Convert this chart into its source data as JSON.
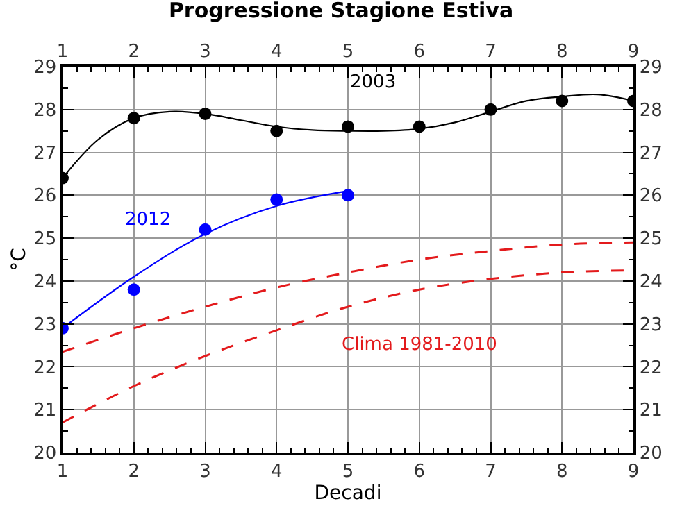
{
  "chart_data": {
    "type": "scatter",
    "title": "Progressione Stagione Estiva",
    "xlabel": "Decadi",
    "ylabel": "°C",
    "xlim": [
      1,
      9
    ],
    "xticks": [
      1,
      2,
      3,
      4,
      5,
      6,
      7,
      8,
      9
    ],
    "x2lim": [
      1,
      9
    ],
    "x2ticks": [
      1,
      2,
      3,
      4,
      5,
      6,
      7,
      8,
      9
    ],
    "ylim": [
      20,
      29
    ],
    "yticks": [
      20,
      21,
      22,
      23,
      24,
      25,
      26,
      27,
      28,
      29
    ],
    "y2lim": [
      20,
      29
    ],
    "y2ticks": [
      20,
      21,
      22,
      23,
      24,
      25,
      26,
      27,
      28,
      29
    ],
    "grid": true,
    "series": [
      {
        "name": "2003",
        "marker": "circle",
        "color": "#000000",
        "x": [
          1,
          2,
          3,
          4,
          5,
          6,
          7,
          8,
          9
        ],
        "values": [
          26.4,
          27.8,
          27.9,
          27.5,
          27.6,
          27.6,
          28.0,
          28.2,
          28.2
        ]
      },
      {
        "type": "line",
        "line_style": "solid",
        "color": "#000000",
        "x": [
          1,
          1.5,
          2,
          2.5,
          3,
          3.5,
          4,
          4.5,
          5,
          5.5,
          6,
          6.5,
          7,
          7.5,
          8,
          8.5,
          9
        ],
        "values": [
          26.4,
          27.3,
          27.8,
          27.95,
          27.9,
          27.75,
          27.6,
          27.52,
          27.5,
          27.5,
          27.55,
          27.7,
          27.95,
          28.2,
          28.3,
          28.35,
          28.2
        ]
      },
      {
        "name": "2012",
        "marker": "circle",
        "color": "#0000ff",
        "x": [
          1,
          2,
          3,
          4,
          5
        ],
        "values": [
          22.9,
          23.8,
          25.2,
          25.9,
          26.0
        ]
      },
      {
        "type": "line",
        "line_style": "solid",
        "color": "#0000ff",
        "x": [
          1,
          2,
          3,
          4,
          5
        ],
        "values": [
          22.9,
          24.1,
          25.1,
          25.75,
          26.1
        ]
      },
      {
        "type": "line",
        "line_style": "dashed",
        "color": "#e31a1c",
        "x": [
          1,
          2,
          3,
          4,
          5,
          6,
          7,
          8,
          9
        ],
        "values": [
          22.35,
          22.9,
          23.4,
          23.85,
          24.2,
          24.5,
          24.7,
          24.85,
          24.9
        ]
      },
      {
        "name": "Clima 1981-2010",
        "type": "line",
        "line_style": "dashed",
        "color": "#e31a1c",
        "x": [
          1,
          2,
          3,
          4,
          5,
          6,
          7,
          8,
          9
        ],
        "values": [
          20.7,
          21.55,
          22.25,
          22.85,
          23.4,
          23.8,
          24.05,
          24.2,
          24.25
        ]
      }
    ]
  }
}
